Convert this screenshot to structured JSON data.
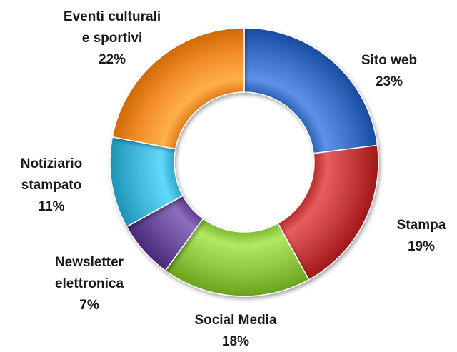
{
  "chart_data": {
    "type": "pie",
    "variant": "donut",
    "title": "",
    "legend": "none",
    "slices": [
      {
        "label_lines": [
          "Sito web"
        ],
        "value": 23,
        "value_label": "23%",
        "color": "#3A6FC4"
      },
      {
        "label_lines": [
          "Stampa"
        ],
        "value": 19,
        "value_label": "19%",
        "color": "#C43A3A"
      },
      {
        "label_lines": [
          "Social Media"
        ],
        "value": 18,
        "value_label": "18%",
        "color": "#8DC63F"
      },
      {
        "label_lines": [
          "Newsletter",
          "elettronica"
        ],
        "value": 7,
        "value_label": "7%",
        "color": "#6A4B9C"
      },
      {
        "label_lines": [
          "Notiziario",
          "stampato"
        ],
        "value": 11,
        "value_label": "11%",
        "color": "#3FB6D8"
      },
      {
        "label_lines": [
          "Eventi culturali",
          "e sportivi"
        ],
        "value": 22,
        "value_label": "22%",
        "color": "#F28C28"
      }
    ]
  }
}
